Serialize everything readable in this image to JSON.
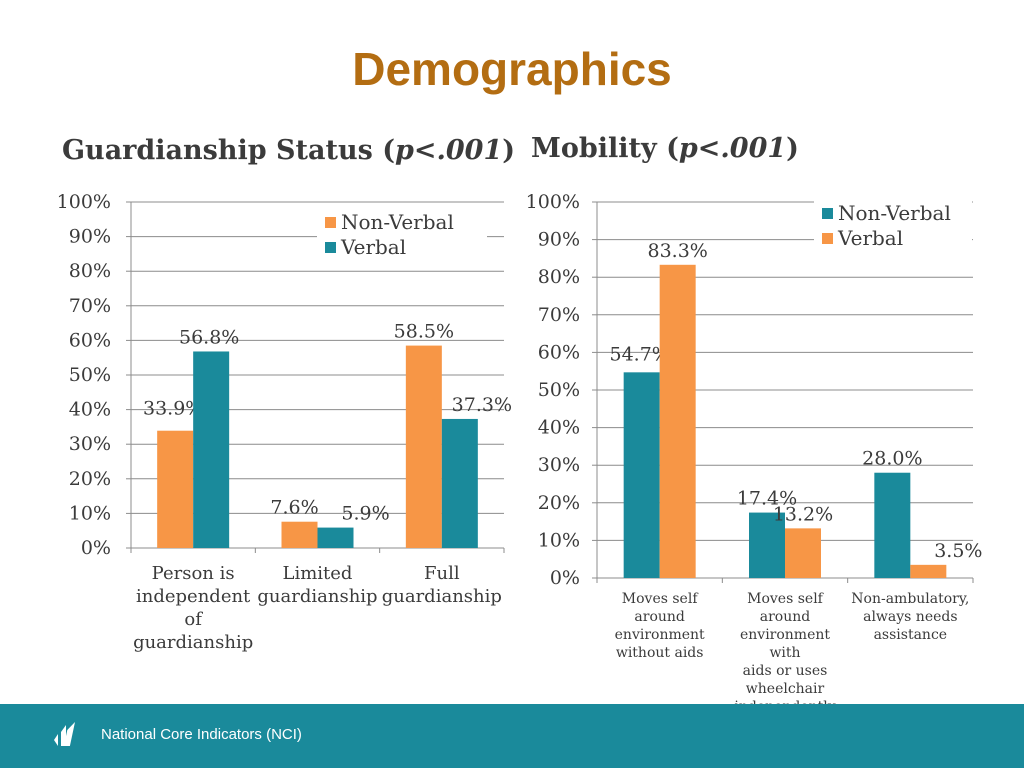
{
  "title": "Demographics",
  "footer": {
    "text": "National Core Indicators (NCI)"
  },
  "colors": {
    "teal": "#1a8a9b",
    "orange": "#f79646",
    "title": "#b36d12"
  },
  "chart_data": [
    {
      "type": "bar",
      "title": "Guardianship Status (p<.001)",
      "title_main": "Guardianship Status (",
      "title_p": "p<.001",
      "title_close": ")",
      "categories": [
        "Person is independent of guardianship",
        "Limited guardianship",
        "Full guardianship"
      ],
      "category_lines": [
        [
          "Person is",
          "independent",
          "of",
          "guardianship"
        ],
        [
          "Limited",
          "guardianship"
        ],
        [
          "Full",
          "guardianship"
        ]
      ],
      "series": [
        {
          "name": "Non-Verbal",
          "color": "#f79646",
          "values": [
            33.9,
            7.6,
            58.5
          ],
          "labels": [
            "33.9%",
            "7.6%",
            "58.5%"
          ]
        },
        {
          "name": "Verbal",
          "color": "#1a8a9b",
          "values": [
            56.8,
            5.9,
            37.3
          ],
          "labels": [
            "56.8%",
            "5.9%",
            "37.3%"
          ]
        }
      ],
      "legend": [
        "Non-Verbal",
        "Verbal"
      ],
      "legend_position": "top-right",
      "ylim": [
        0,
        100
      ],
      "yticks": [
        "0%",
        "10%",
        "20%",
        "30%",
        "40%",
        "50%",
        "60%",
        "70%",
        "80%",
        "90%",
        "100%"
      ],
      "grid": true
    },
    {
      "type": "bar",
      "title": "Mobility (p<.001)",
      "title_main": "Mobility (",
      "title_p": "p<.001",
      "title_close": ")",
      "categories": [
        "Moves self around environment without aids",
        "Moves self around environment with aids or uses wheelchair independently",
        "Non-ambulatory, always needs assistance"
      ],
      "category_lines": [
        [
          "Moves self around",
          "environment",
          "without aids"
        ],
        [
          "Moves self around",
          "environment with",
          "aids or uses",
          "wheelchair",
          "independently"
        ],
        [
          "Non-ambulatory,",
          "always needs",
          "assistance"
        ]
      ],
      "series": [
        {
          "name": "Non-Verbal",
          "color": "#1a8a9b",
          "values": [
            54.7,
            17.4,
            28.0
          ],
          "labels": [
            "54.7%",
            "17.4%",
            "28.0%"
          ]
        },
        {
          "name": "Verbal",
          "color": "#f79646",
          "values": [
            83.3,
            13.2,
            3.5
          ],
          "labels": [
            "83.3%",
            "13.2%",
            "3.5%"
          ]
        }
      ],
      "legend": [
        "Non-Verbal",
        "Verbal"
      ],
      "legend_position": "top-right",
      "ylim": [
        0,
        100
      ],
      "yticks": [
        "0%",
        "10%",
        "20%",
        "30%",
        "40%",
        "50%",
        "60%",
        "70%",
        "80%",
        "90%",
        "100%"
      ],
      "grid": true
    }
  ]
}
